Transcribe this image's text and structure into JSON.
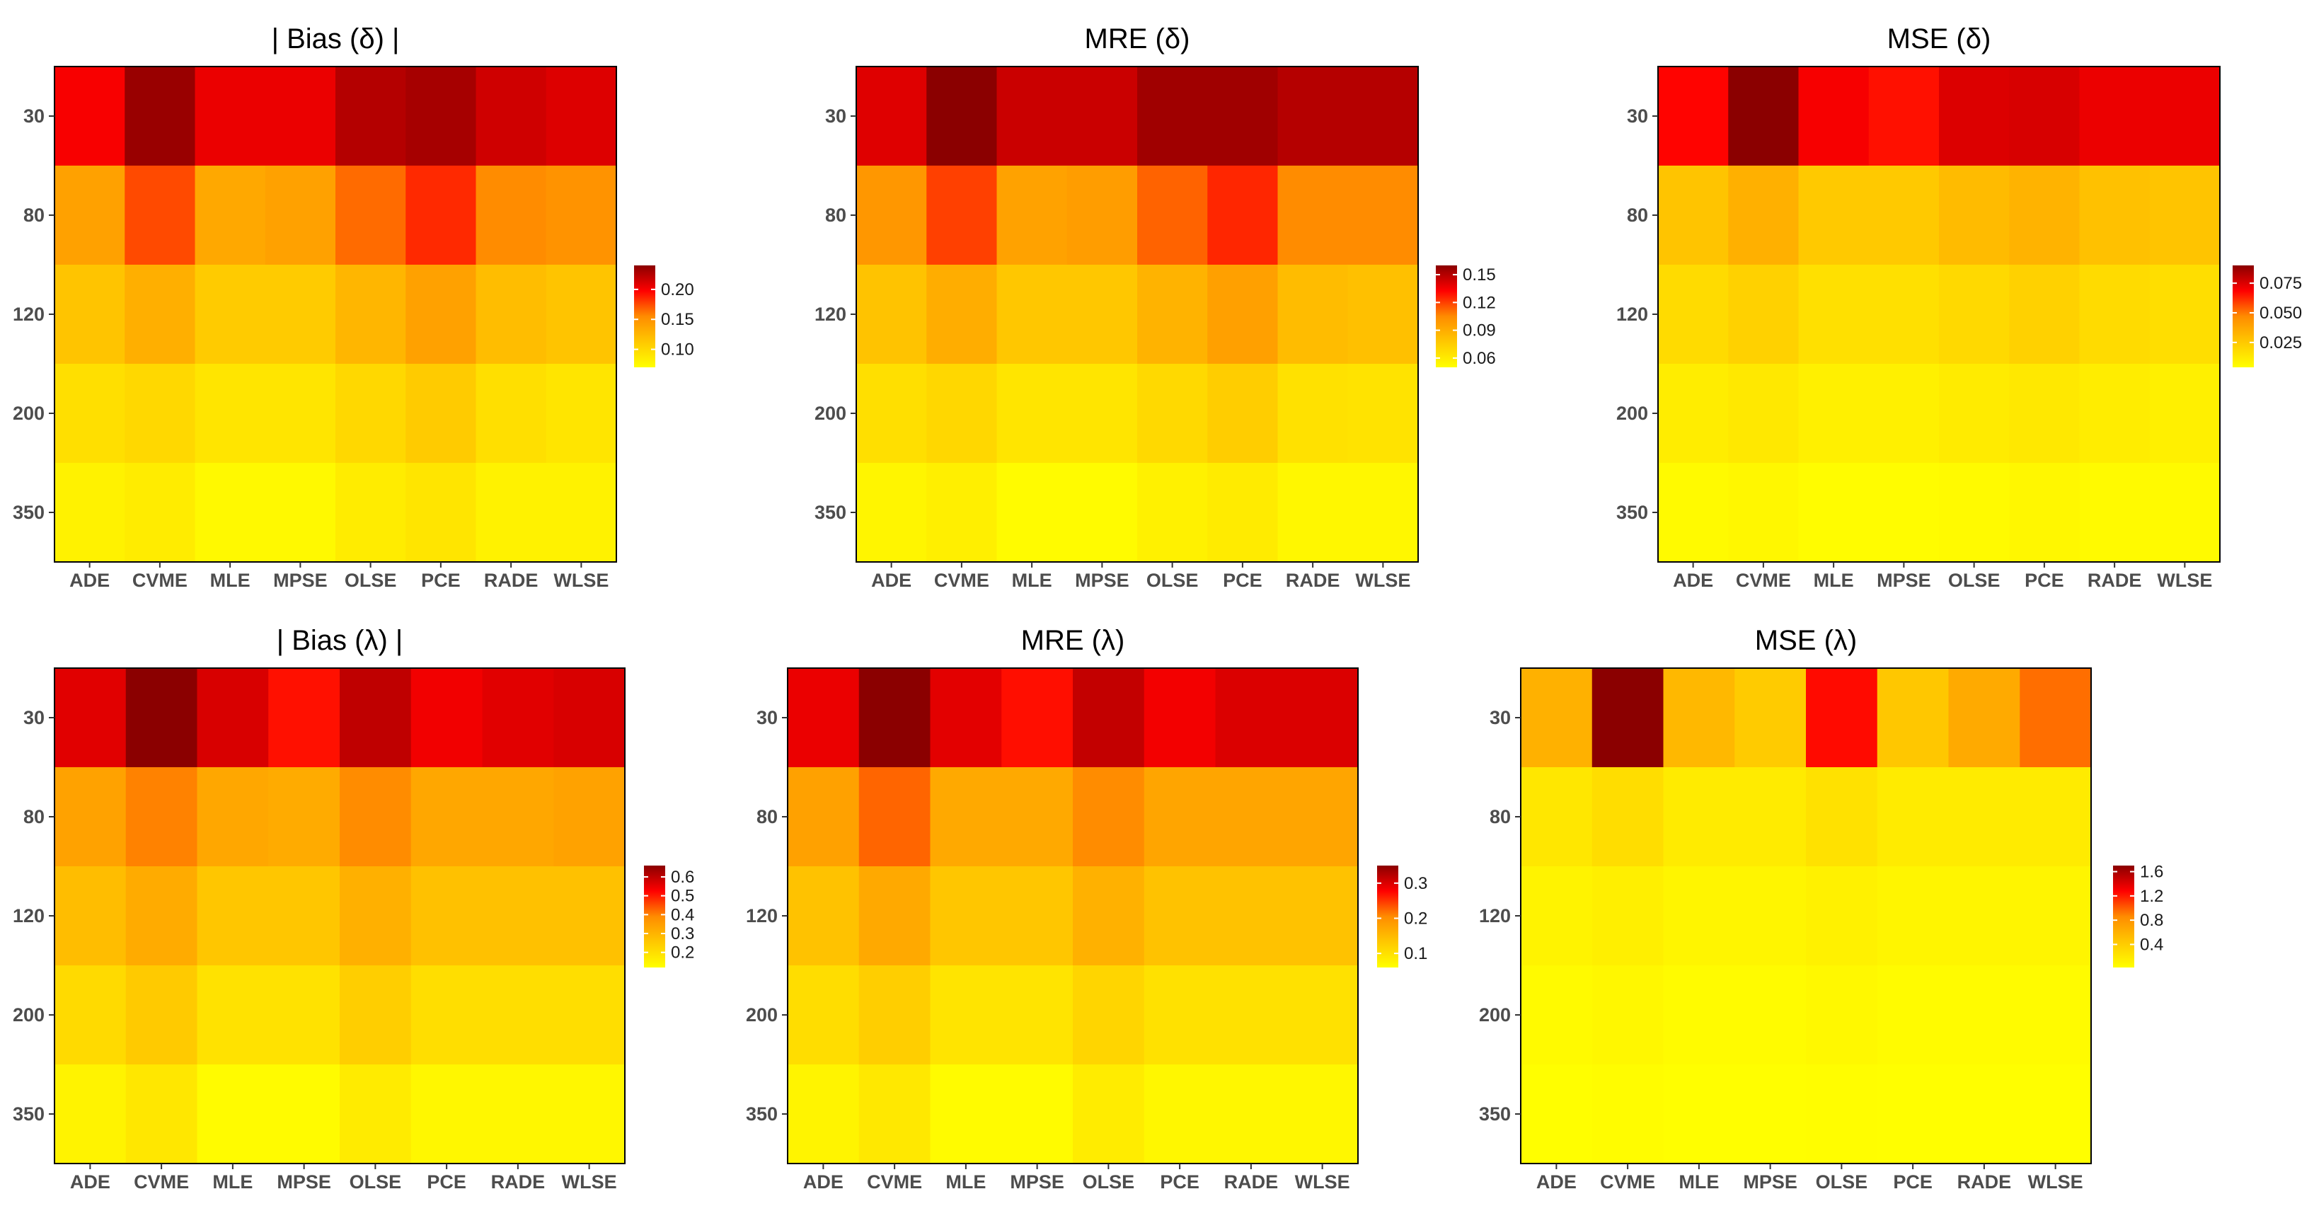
{
  "chart_data": [
    {
      "type": "heatmap",
      "title": "| Bias (δ) |",
      "categories": [
        "ADE",
        "CVME",
        "MLE",
        "MPSE",
        "OLSE",
        "PCE",
        "RADE",
        "WLSE"
      ],
      "rows": [
        "30",
        "80",
        "120",
        "200",
        "350"
      ],
      "values": [
        [
          0.2,
          0.235,
          0.205,
          0.205,
          0.225,
          0.23,
          0.215,
          0.21
        ],
        [
          0.14,
          0.175,
          0.135,
          0.14,
          0.165,
          0.185,
          0.155,
          0.15
        ],
        [
          0.115,
          0.13,
          0.11,
          0.11,
          0.125,
          0.14,
          0.12,
          0.115
        ],
        [
          0.095,
          0.1,
          0.09,
          0.09,
          0.1,
          0.11,
          0.095,
          0.09
        ],
        [
          0.08,
          0.085,
          0.075,
          0.075,
          0.085,
          0.09,
          0.08,
          0.08
        ]
      ],
      "scale": [
        0.07,
        0.24
      ],
      "legend_ticks": [
        0.1,
        0.15,
        0.2
      ],
      "legend_labels": [
        "0.10",
        "0.15",
        "0.20"
      ]
    },
    {
      "type": "heatmap",
      "title": "MRE (δ)",
      "categories": [
        "ADE",
        "CVME",
        "MLE",
        "MPSE",
        "OLSE",
        "PCE",
        "RADE",
        "WLSE"
      ],
      "rows": [
        "30",
        "80",
        "120",
        "200",
        "350"
      ],
      "values": [
        [
          0.14,
          0.16,
          0.145,
          0.145,
          0.155,
          0.155,
          0.15,
          0.15
        ],
        [
          0.1,
          0.12,
          0.095,
          0.097,
          0.113,
          0.125,
          0.105,
          0.105
        ],
        [
          0.08,
          0.09,
          0.078,
          0.078,
          0.087,
          0.096,
          0.083,
          0.081
        ],
        [
          0.066,
          0.07,
          0.063,
          0.063,
          0.069,
          0.075,
          0.065,
          0.064
        ],
        [
          0.055,
          0.058,
          0.052,
          0.052,
          0.057,
          0.06,
          0.054,
          0.054
        ]
      ],
      "scale": [
        0.05,
        0.16
      ],
      "legend_ticks": [
        0.06,
        0.09,
        0.12,
        0.15
      ],
      "legend_labels": [
        "0.06",
        "0.09",
        "0.12",
        "0.15"
      ]
    },
    {
      "type": "heatmap",
      "title": "MSE (δ)",
      "categories": [
        "ADE",
        "CVME",
        "MLE",
        "MPSE",
        "OLSE",
        "PCE",
        "RADE",
        "WLSE"
      ],
      "rows": [
        "30",
        "80",
        "120",
        "200",
        "350"
      ],
      "values": [
        [
          0.068,
          0.09,
          0.07,
          0.066,
          0.075,
          0.076,
          0.072,
          0.072
        ],
        [
          0.027,
          0.034,
          0.025,
          0.025,
          0.03,
          0.033,
          0.028,
          0.027
        ],
        [
          0.018,
          0.022,
          0.016,
          0.016,
          0.019,
          0.022,
          0.018,
          0.017
        ],
        [
          0.011,
          0.013,
          0.01,
          0.01,
          0.012,
          0.013,
          0.011,
          0.01
        ],
        [
          0.006,
          0.007,
          0.005,
          0.005,
          0.006,
          0.007,
          0.006,
          0.006
        ]
      ],
      "scale": [
        0.004,
        0.09
      ],
      "legend_ticks": [
        0.025,
        0.05,
        0.075
      ],
      "legend_labels": [
        "0.025",
        "0.050",
        "0.075"
      ]
    },
    {
      "type": "heatmap",
      "title": "| Bias (λ) |",
      "categories": [
        "ADE",
        "CVME",
        "MLE",
        "MPSE",
        "OLSE",
        "PCE",
        "RADE",
        "WLSE"
      ],
      "rows": [
        "30",
        "80",
        "120",
        "200",
        "350"
      ],
      "values": [
        [
          0.56,
          0.66,
          0.57,
          0.51,
          0.6,
          0.54,
          0.56,
          0.57
        ],
        [
          0.34,
          0.4,
          0.33,
          0.32,
          0.39,
          0.33,
          0.33,
          0.34
        ],
        [
          0.28,
          0.32,
          0.26,
          0.26,
          0.31,
          0.27,
          0.27,
          0.27
        ],
        [
          0.21,
          0.25,
          0.19,
          0.19,
          0.24,
          0.2,
          0.2,
          0.2
        ],
        [
          0.15,
          0.18,
          0.13,
          0.13,
          0.17,
          0.14,
          0.14,
          0.14
        ]
      ],
      "scale": [
        0.12,
        0.66
      ],
      "legend_ticks": [
        0.2,
        0.3,
        0.4,
        0.5,
        0.6
      ],
      "legend_labels": [
        "0.2",
        "0.3",
        "0.4",
        "0.5",
        "0.6"
      ]
    },
    {
      "type": "heatmap",
      "title": "MRE (λ)",
      "categories": [
        "ADE",
        "CVME",
        "MLE",
        "MPSE",
        "OLSE",
        "PCE",
        "RADE",
        "WLSE"
      ],
      "rows": [
        "30",
        "80",
        "120",
        "200",
        "350"
      ],
      "values": [
        [
          0.29,
          0.35,
          0.295,
          0.27,
          0.315,
          0.285,
          0.3,
          0.3
        ],
        [
          0.18,
          0.225,
          0.17,
          0.17,
          0.205,
          0.175,
          0.175,
          0.175
        ],
        [
          0.14,
          0.17,
          0.135,
          0.135,
          0.16,
          0.14,
          0.14,
          0.14
        ],
        [
          0.105,
          0.125,
          0.095,
          0.095,
          0.115,
          0.1,
          0.1,
          0.1
        ],
        [
          0.075,
          0.09,
          0.065,
          0.065,
          0.085,
          0.07,
          0.07,
          0.07
        ]
      ],
      "scale": [
        0.06,
        0.35
      ],
      "legend_ticks": [
        0.1,
        0.2,
        0.3
      ],
      "legend_labels": [
        "0.1",
        "0.2",
        "0.3"
      ]
    },
    {
      "type": "heatmap",
      "title": "MSE (λ)",
      "categories": [
        "ADE",
        "CVME",
        "MLE",
        "MPSE",
        "OLSE",
        "PCE",
        "RADE",
        "WLSE"
      ],
      "rows": [
        "30",
        "80",
        "120",
        "200",
        "350"
      ],
      "values": [
        [
          0.6,
          1.7,
          0.55,
          0.42,
          1.25,
          0.45,
          0.65,
          0.95
        ],
        [
          0.2,
          0.28,
          0.17,
          0.17,
          0.25,
          0.17,
          0.17,
          0.17
        ],
        [
          0.11,
          0.14,
          0.1,
          0.1,
          0.13,
          0.1,
          0.1,
          0.1
        ],
        [
          0.06,
          0.08,
          0.05,
          0.05,
          0.07,
          0.05,
          0.05,
          0.05
        ],
        [
          0.03,
          0.04,
          0.025,
          0.025,
          0.035,
          0.025,
          0.025,
          0.025
        ]
      ],
      "scale": [
        0.02,
        1.7
      ],
      "legend_ticks": [
        0.4,
        0.8,
        1.2,
        1.6
      ],
      "legend_labels": [
        "0.4",
        "0.8",
        "1.2",
        "1.6"
      ]
    }
  ]
}
